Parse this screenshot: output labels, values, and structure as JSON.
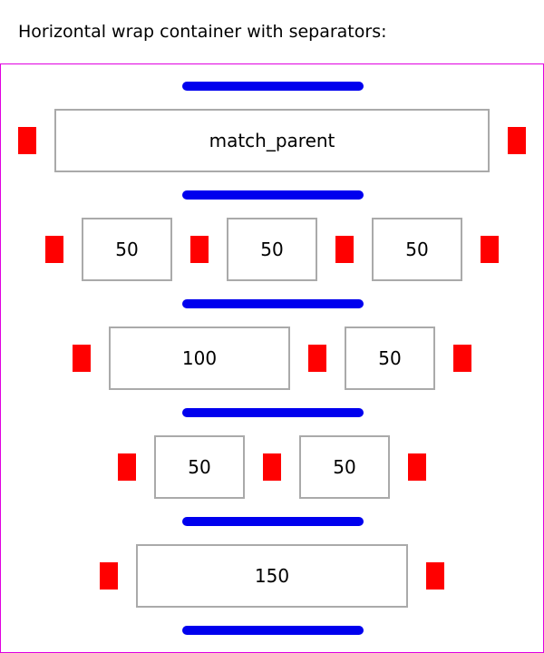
{
  "heading": "Horizontal wrap container with separators:",
  "colors": {
    "container_border": "#e000e0",
    "separator": "#0000ee",
    "item_separator": "#ff0000",
    "box_border": "#aaaaaa"
  },
  "rows": [
    {
      "items": [
        {
          "label": "match_parent"
        }
      ]
    },
    {
      "items": [
        {
          "label": "50"
        },
        {
          "label": "50"
        },
        {
          "label": "50"
        }
      ]
    },
    {
      "items": [
        {
          "label": "100"
        },
        {
          "label": "50"
        }
      ]
    },
    {
      "items": [
        {
          "label": "50"
        },
        {
          "label": "50"
        }
      ]
    },
    {
      "items": [
        {
          "label": "150"
        }
      ]
    }
  ]
}
